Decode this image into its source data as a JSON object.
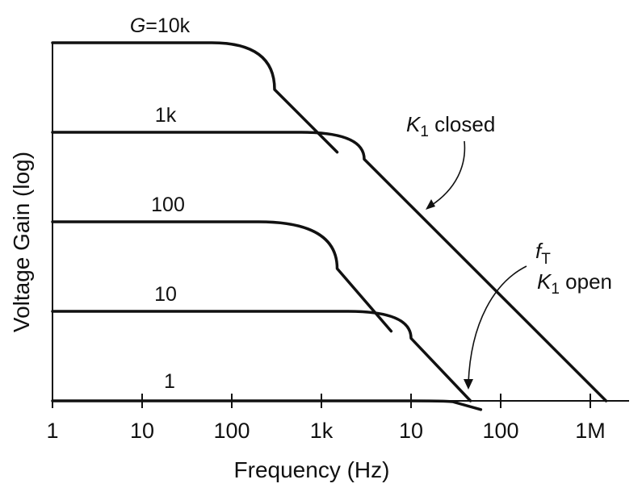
{
  "chart_data": {
    "type": "line",
    "xlabel": "Frequency  (Hz)",
    "ylabel": "Voltage Gain  (log)",
    "x_scale": "log",
    "y_scale": "log",
    "grid": false,
    "xticks": [
      "1",
      "10",
      "100",
      "1k",
      "10",
      "100",
      "1M"
    ],
    "xlim": [
      1,
      10000000
    ],
    "ylim": [
      1,
      10000
    ],
    "series": [
      {
        "name": "G=10k",
        "label": "G=10k",
        "x": [
          1,
          60,
          300,
          1500
        ],
        "y": [
          10000,
          10000,
          3000,
          600
        ]
      },
      {
        "name": "1k",
        "label": "1k",
        "x": [
          1,
          600,
          3000,
          1500000
        ],
        "y": [
          1000,
          1000,
          500,
          1
        ]
      },
      {
        "name": "100",
        "label": "100",
        "x": [
          1,
          200,
          1500,
          6000
        ],
        "y": [
          100,
          100,
          30,
          6
        ]
      },
      {
        "name": "10",
        "label": "10",
        "x": [
          1,
          2000,
          10000,
          46000
        ],
        "y": [
          10,
          10,
          5,
          1
        ]
      },
      {
        "name": "1",
        "label": "1",
        "x": [
          1,
          10000,
          30000,
          60000
        ],
        "y": [
          1,
          1,
          0.97,
          0.8
        ]
      }
    ],
    "annotations": {
      "k1_closed": {
        "symbol": "K",
        "subscript": "1",
        "text": " closed"
      },
      "ft": {
        "symbol": "f",
        "subscript": "T"
      },
      "k1_open": {
        "symbol": "K",
        "subscript": "1",
        "text": " open"
      }
    },
    "colors": {
      "line": "#111111",
      "background": "#ffffff"
    }
  }
}
